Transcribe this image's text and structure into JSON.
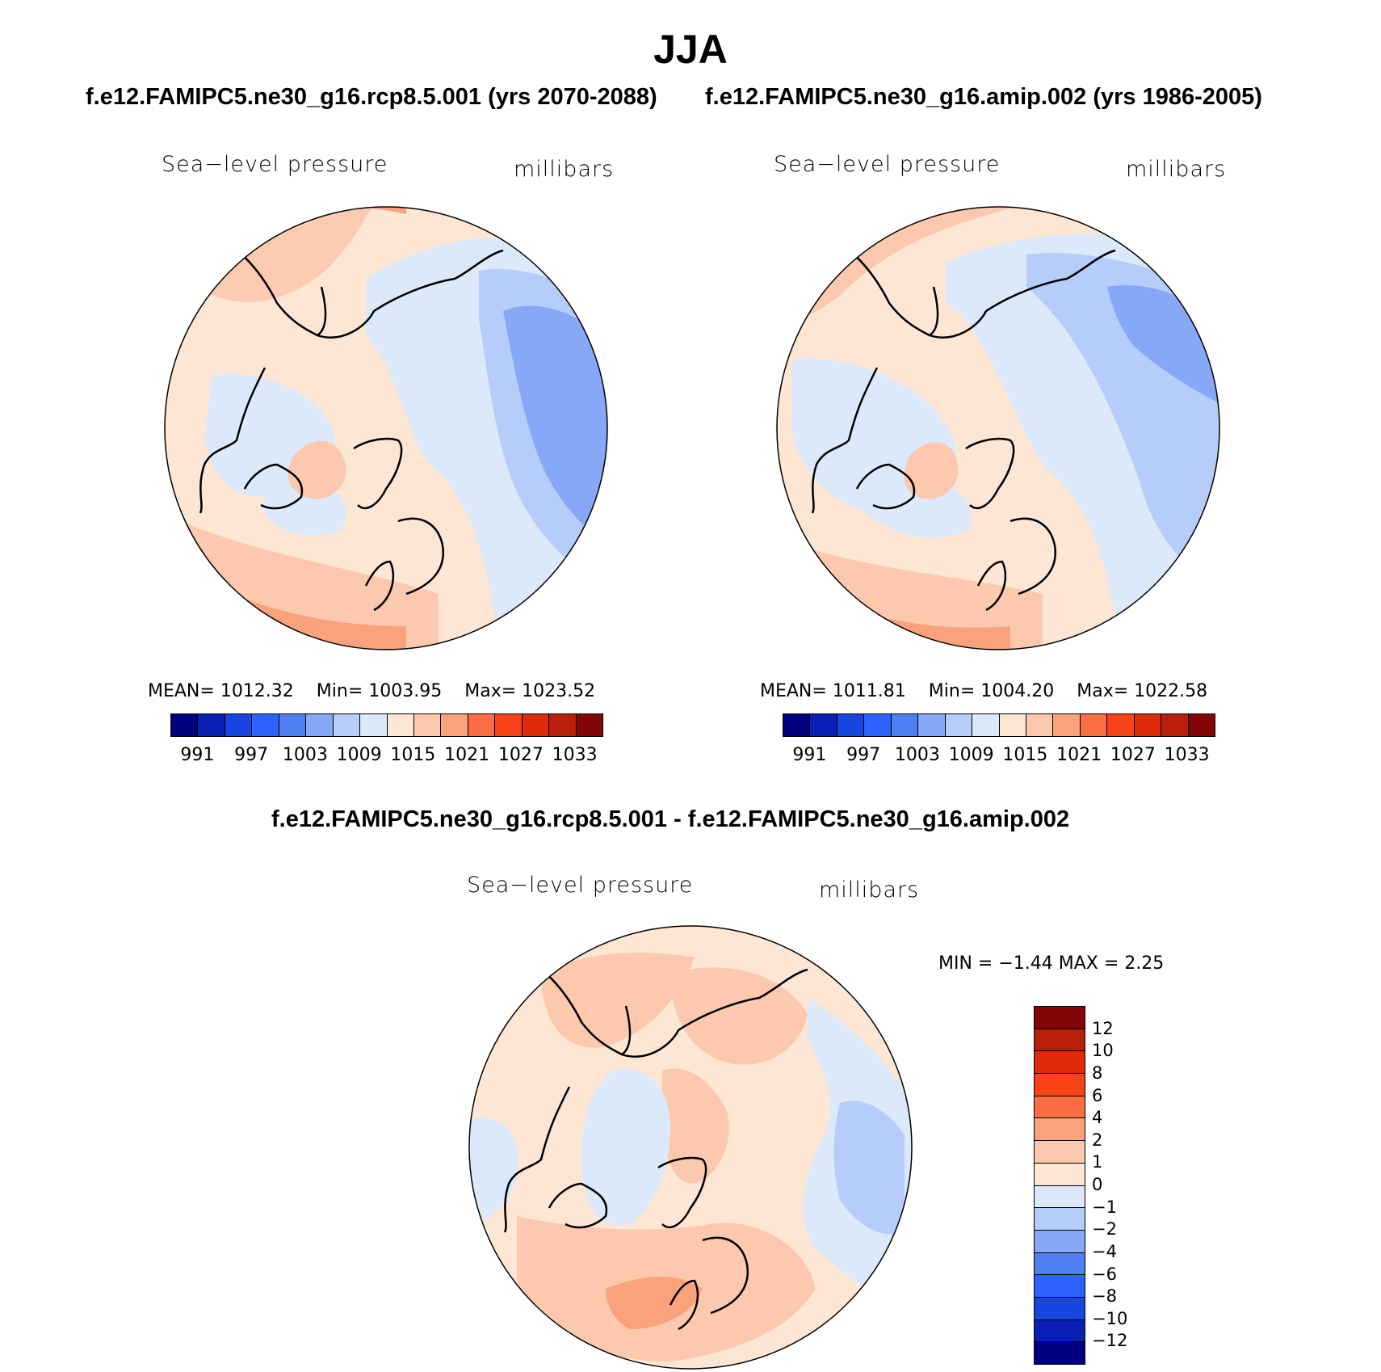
{
  "title": "JJA",
  "subtitles": {
    "left": "f.e12.FAMIPC5.ne30_g16.rcp8.5.001 (yrs 2070-2088)",
    "right": "f.e12.FAMIPC5.ne30_g16.amip.002 (yrs 1986-2005)",
    "diff": "f.e12.FAMIPC5.ne30_g16.rcp8.5.001 - f.e12.FAMIPC5.ne30_g16.amip.002"
  },
  "panels": [
    {
      "id": "rcp",
      "variable": "Sea−level pressure",
      "units": "millibars",
      "stats": {
        "mean": "MEAN=  1012.32",
        "min": "Min=  1003.95",
        "max": "Max=  1023.52"
      },
      "colorbar_labels": [
        "991",
        "997",
        "1003",
        "1009",
        "1015",
        "1021",
        "1027",
        "1033"
      ]
    },
    {
      "id": "amip",
      "variable": "Sea−level pressure",
      "units": "millibars",
      "stats": {
        "mean": "MEAN=  1011.81",
        "min": "Min=  1004.20",
        "max": "Max=  1022.58"
      },
      "colorbar_labels": [
        "991",
        "997",
        "1003",
        "1009",
        "1015",
        "1021",
        "1027",
        "1033"
      ]
    },
    {
      "id": "diff",
      "variable": "Sea−level pressure",
      "units": "millibars",
      "minmax": "MIN =    −1.44  MAX =     2.25",
      "colorbar_labels": [
        "12",
        "10",
        "8",
        "6",
        "4",
        "2",
        "1",
        "0",
        "−1",
        "−2",
        "−4",
        "−6",
        "−8",
        "−10",
        "−12"
      ]
    }
  ],
  "colors": {
    "slp_scale": [
      "#000080",
      "#0a1fb4",
      "#1846e0",
      "#2e62ff",
      "#4f7ff0",
      "#86a8f7",
      "#b6cdfb",
      "#dbe9fb",
      "#fde6d4",
      "#fcc8ae",
      "#f9a27c",
      "#fb6d42",
      "#f84217",
      "#de2c0a",
      "#b8200a",
      "#820606"
    ],
    "diff_scale": [
      "#000080",
      "#0a1fb4",
      "#1846e0",
      "#2e62ff",
      "#4f7ff0",
      "#86a8f7",
      "#b6cdfb",
      "#dbe9fb",
      "#fde6d4",
      "#fcc8ae",
      "#f9a27c",
      "#fb6d42",
      "#f84217",
      "#de2c0a",
      "#b8200a",
      "#820606"
    ]
  }
}
